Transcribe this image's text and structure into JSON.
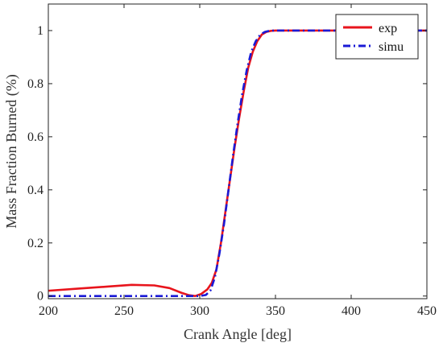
{
  "chart_data": {
    "type": "line",
    "title": "",
    "xlabel": "Crank Angle [deg]",
    "ylabel": "Mass Fraction Burned (%)",
    "xlim": [
      200,
      450
    ],
    "ylim": [
      -0.01,
      1.1
    ],
    "xticks": [
      200,
      250,
      300,
      350,
      400,
      450
    ],
    "yticks": [
      0,
      0.2,
      0.4,
      0.6,
      0.8,
      1
    ],
    "ytick_labels": [
      "0",
      "0.2",
      "0.4",
      "0.6",
      "0.8",
      "1"
    ],
    "grid": false,
    "legend_position": "top-right",
    "series": [
      {
        "name": "exp",
        "color": "#e8141c",
        "style": "solid",
        "x": [
          200,
          220,
          240,
          255,
          270,
          280,
          288,
          293,
          297,
          301,
          305,
          308,
          311,
          314,
          317,
          320,
          323,
          326,
          329,
          332,
          335,
          338,
          341,
          344,
          347,
          350,
          355,
          360,
          380,
          400,
          420,
          450
        ],
        "y": [
          0.02,
          0.028,
          0.036,
          0.042,
          0.04,
          0.03,
          0.012,
          0.003,
          0.0,
          0.008,
          0.025,
          0.05,
          0.1,
          0.2,
          0.32,
          0.44,
          0.56,
          0.67,
          0.77,
          0.86,
          0.92,
          0.96,
          0.985,
          0.995,
          0.999,
          1.0,
          1.0,
          1.0,
          1.0,
          1.0,
          1.0,
          1.0
        ]
      },
      {
        "name": "simu",
        "color": "#1a1ad6",
        "style": "dashdot",
        "x": [
          200,
          250,
          290,
          300,
          304,
          307,
          310,
          313,
          316,
          319,
          322,
          325,
          328,
          331,
          334,
          337,
          340,
          343,
          346,
          349,
          352,
          360,
          380,
          400,
          420,
          450
        ],
        "y": [
          0.0,
          0.0,
          0.0,
          0.0,
          0.004,
          0.02,
          0.07,
          0.16,
          0.27,
          0.4,
          0.53,
          0.65,
          0.76,
          0.85,
          0.92,
          0.96,
          0.985,
          0.995,
          0.999,
          1.0,
          1.0,
          1.0,
          1.0,
          1.0,
          1.0,
          1.0
        ]
      }
    ]
  }
}
